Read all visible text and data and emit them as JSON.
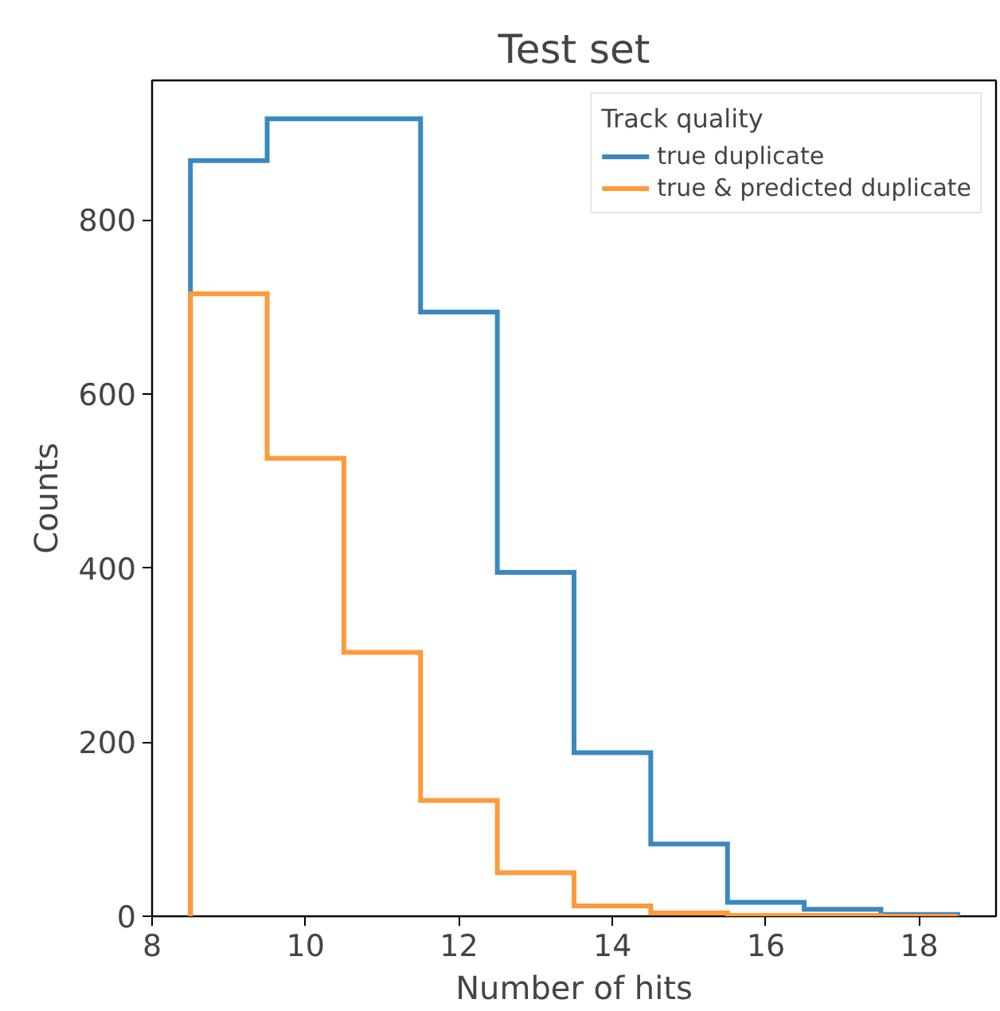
{
  "chart_data": {
    "type": "histogram",
    "title": "Test set",
    "xlabel": "Number of hits",
    "ylabel": "Counts",
    "legend_title": "Track quality",
    "bins": [
      8.5,
      9.5,
      10.5,
      11.5,
      12.5,
      13.5,
      14.5,
      15.5,
      16.5,
      17.5,
      18.5
    ],
    "series": [
      {
        "name": "true duplicate",
        "color": "#3a88bf",
        "values": [
          868,
          916,
          916,
          694,
          395,
          188,
          83,
          16,
          8,
          2
        ]
      },
      {
        "name": "true & predicted duplicate",
        "color": "#ff9a3c",
        "values": [
          715,
          526,
          303,
          133,
          50,
          12,
          4,
          1,
          1,
          0
        ]
      }
    ],
    "xlim": [
      8,
      19
    ],
    "ylim": [
      0,
      960
    ],
    "xticks": [
      8,
      10,
      12,
      14,
      16,
      18
    ],
    "yticks": [
      0,
      200,
      400,
      600,
      800
    ],
    "grid": false,
    "legend": "top right"
  }
}
